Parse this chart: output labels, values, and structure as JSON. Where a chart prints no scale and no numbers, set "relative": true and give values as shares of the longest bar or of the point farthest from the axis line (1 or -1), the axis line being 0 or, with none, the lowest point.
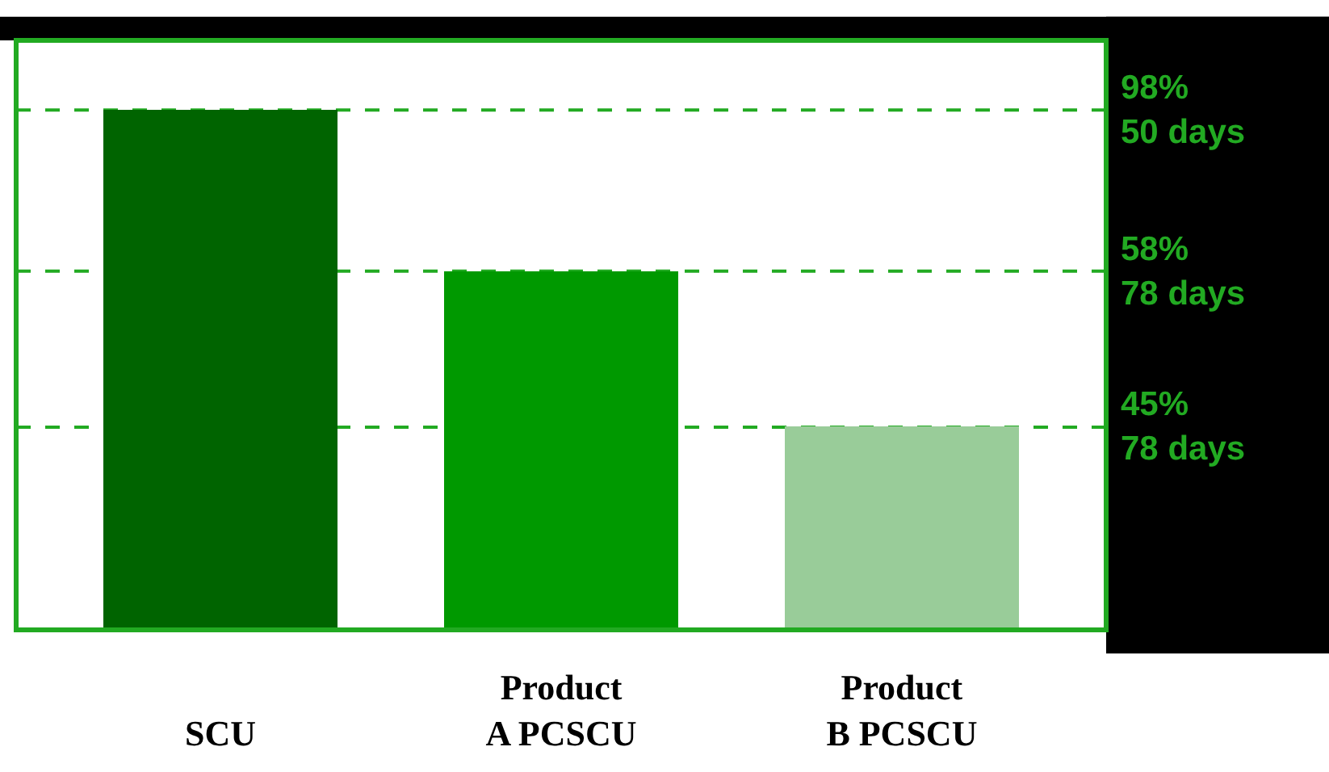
{
  "chart_data": {
    "type": "bar",
    "relative": true,
    "categories": [
      "SCU",
      "Product A PCSCU",
      "Product B PCSCU"
    ],
    "values": [
      1,
      0.69,
      0.39
    ],
    "colors": [
      "#006400",
      "#009900",
      "#99cc99"
    ],
    "ref_lines": [
      {
        "axis": "y",
        "value": 1,
        "label": "98%\n50 days",
        "color": "#22aa22",
        "line_style": "dashed"
      },
      {
        "axis": "y",
        "value": 0.69,
        "label": "58%\n78 days",
        "color": "#22aa22",
        "line_style": "dashed"
      },
      {
        "axis": "y",
        "value": 0.39,
        "label": "45%\n78 days",
        "color": "#22aa22",
        "line_style": "dashed"
      }
    ],
    "grid": false
  }
}
